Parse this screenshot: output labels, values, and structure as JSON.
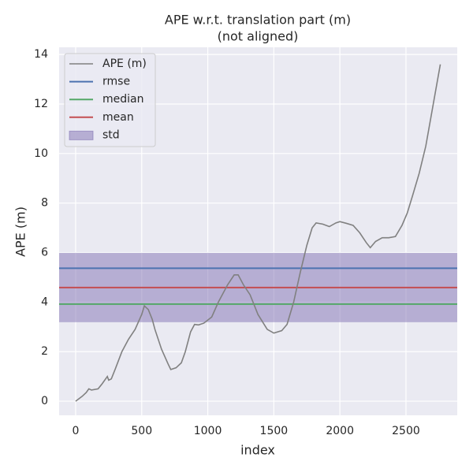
{
  "chart_data": {
    "type": "line",
    "title": "APE w.r.t. translation part (m)",
    "subtitle": "(not aligned)",
    "x_label": "index",
    "y_label": "APE (m)",
    "xlim": [
      -125,
      2888
    ],
    "ylim": [
      -0.57,
      14.29
    ],
    "xticks": [
      0,
      500,
      1000,
      1500,
      2000,
      2500
    ],
    "yticks": [
      0,
      2,
      4,
      6,
      8,
      10,
      12,
      14
    ],
    "grid": true,
    "legend": "upper left",
    "series": [
      {
        "name": "APE (m)",
        "color": "#808080",
        "x": [
          0,
          50,
          80,
          100,
          120,
          170,
          200,
          240,
          250,
          270,
          300,
          350,
          400,
          450,
          500,
          520,
          550,
          580,
          600,
          650,
          700,
          720,
          760,
          800,
          830,
          870,
          900,
          930,
          970,
          1030,
          1080,
          1150,
          1200,
          1230,
          1270,
          1320,
          1380,
          1450,
          1500,
          1560,
          1600,
          1650,
          1700,
          1750,
          1790,
          1820,
          1870,
          1920,
          1970,
          2000,
          2050,
          2100,
          2150,
          2200,
          2230,
          2270,
          2320,
          2370,
          2420,
          2470,
          2510,
          2550,
          2600,
          2650,
          2700,
          2740,
          2760
        ],
        "values": [
          0,
          0.2,
          0.35,
          0.5,
          0.45,
          0.5,
          0.7,
          1.0,
          0.85,
          0.9,
          1.3,
          2.0,
          2.5,
          2.9,
          3.5,
          3.85,
          3.7,
          3.3,
          2.9,
          2.1,
          1.5,
          1.28,
          1.35,
          1.55,
          2.0,
          2.8,
          3.1,
          3.08,
          3.15,
          3.4,
          4.0,
          4.7,
          5.1,
          5.1,
          4.7,
          4.3,
          3.5,
          2.9,
          2.75,
          2.85,
          3.1,
          4.0,
          5.2,
          6.3,
          7.0,
          7.2,
          7.15,
          7.05,
          7.2,
          7.25,
          7.18,
          7.1,
          6.8,
          6.4,
          6.2,
          6.45,
          6.6,
          6.6,
          6.65,
          7.1,
          7.6,
          8.3,
          9.2,
          10.3,
          11.8,
          13.0,
          13.6
        ]
      }
    ],
    "stats": [
      {
        "name": "rmse",
        "color": "#4c72b0",
        "value": 5.37
      },
      {
        "name": "median",
        "color": "#55a868",
        "value": 3.92
      },
      {
        "name": "mean",
        "color": "#c44e52",
        "value": 4.59
      }
    ],
    "std": {
      "name": "std",
      "color": "#8172b3",
      "value": 1.4
    }
  }
}
